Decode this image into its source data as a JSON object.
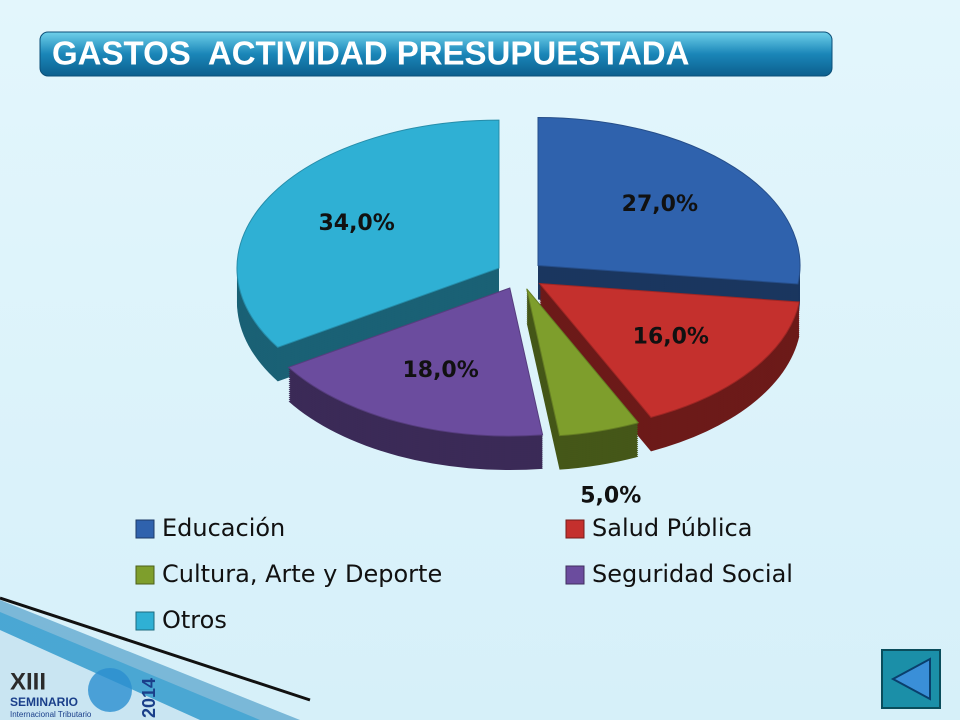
{
  "chart_data": {
    "type": "pie",
    "title": "GASTOS  ACTIVIDAD PRESUPUESTADA",
    "categories": [
      "Educación",
      "Salud Pública",
      "Cultura, Arte y Deporte",
      "Seguridad Social",
      "Otros"
    ],
    "values": [
      27,
      16,
      5,
      18,
      34
    ],
    "value_labels": [
      "27,0%",
      "16,0%",
      "5,0%",
      "18,0%",
      "34,0%"
    ],
    "colors": [
      "#2f62ad",
      "#c4302d",
      "#7e9e2c",
      "#6b4c9e",
      "#2fb0d4"
    ],
    "legend": "bottom"
  },
  "logo": {
    "numeral": "XIII",
    "name": "SEMINARIO",
    "subtitle": "Internacional Tributario",
    "year": "2014"
  }
}
